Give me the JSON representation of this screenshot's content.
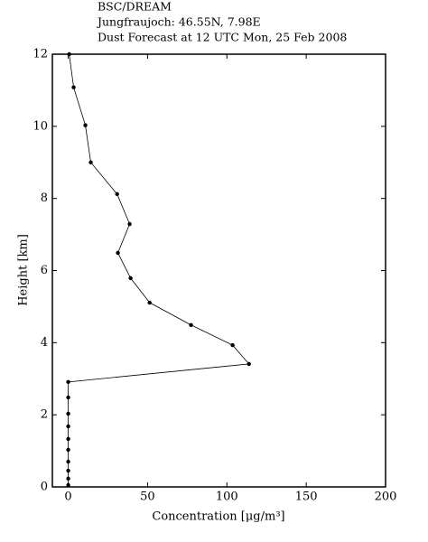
{
  "chart_data": {
    "type": "line",
    "title": [
      "BSC/DREAM",
      "Jungfraujoch: 46.55N, 7.98E",
      "Dust Forecast at 12 UTC Mon, 25 Feb 2008"
    ],
    "x_label": "Concentration [μg/m³]",
    "y_label": "Height [km]",
    "xlim": [
      -10,
      200
    ],
    "xticks": [
      0,
      50,
      100,
      150,
      200
    ],
    "ylim": [
      0,
      12
    ],
    "yticks": [
      0,
      2,
      4,
      6,
      8,
      10,
      12
    ],
    "series": [
      {
        "color": "#000000",
        "x": [
          0.6,
          3.4,
          10.8,
          14.2,
          30.8,
          38.7,
          31.3,
          39.3,
          51.3,
          77.4,
          103.6,
          113.9,
          0,
          0,
          0,
          0,
          0,
          0,
          0,
          0,
          0,
          0
        ],
        "values": [
          12.0,
          11.08,
          10.03,
          9.0,
          8.12,
          7.29,
          6.49,
          5.79,
          5.11,
          4.49,
          3.93,
          3.41,
          2.91,
          2.48,
          2.03,
          1.68,
          1.33,
          1.03,
          0.7,
          0.45,
          0.23,
          0.05
        ]
      }
    ]
  }
}
